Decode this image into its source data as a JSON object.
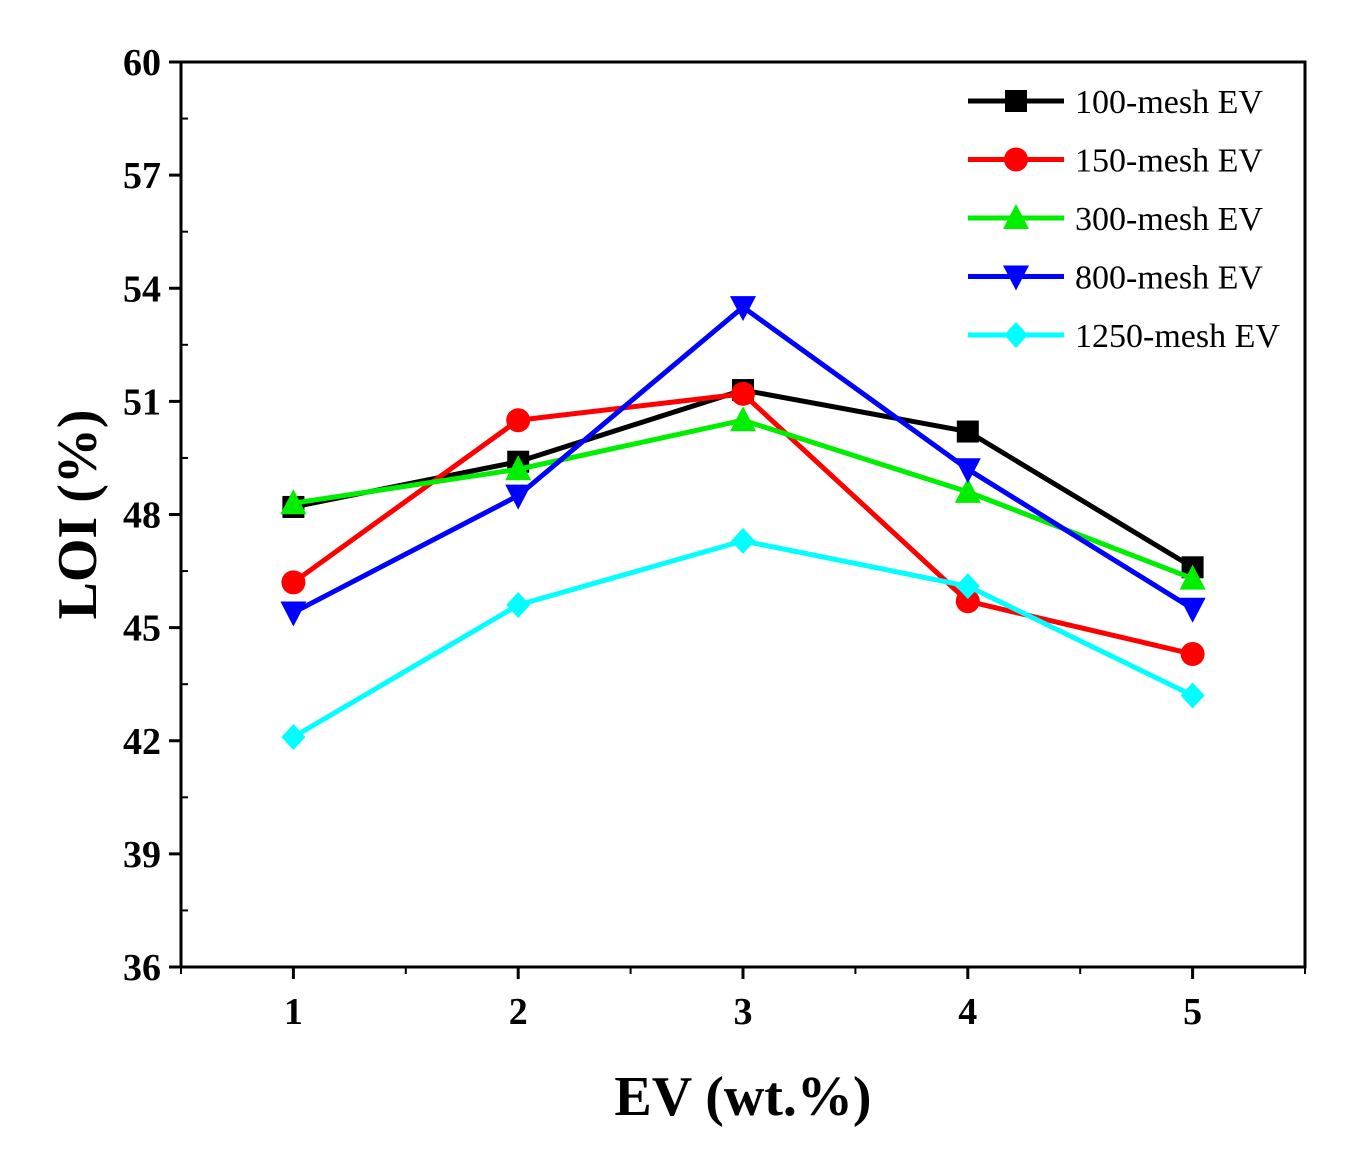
{
  "chart_data": {
    "type": "line",
    "xlabel": "EV (wt.%)",
    "ylabel": "LOI (%)",
    "x": [
      1,
      2,
      3,
      4,
      5
    ],
    "xlim": [
      0.5,
      5.5
    ],
    "ylim": [
      36,
      60
    ],
    "xticks": [
      "1",
      "2",
      "3",
      "4",
      "5"
    ],
    "yticks": [
      "36",
      "39",
      "42",
      "45",
      "48",
      "51",
      "54",
      "57",
      "60"
    ],
    "grid": false,
    "legend_position": "top-right",
    "series": [
      {
        "name": "100-mesh EV",
        "color": "#000000",
        "marker": "square",
        "values": [
          48.2,
          49.4,
          51.3,
          50.2,
          46.6
        ]
      },
      {
        "name": "150-mesh EV",
        "color": "#ff0000",
        "marker": "circle",
        "values": [
          46.2,
          50.5,
          51.2,
          45.7,
          44.3
        ]
      },
      {
        "name": "300-mesh EV",
        "color": "#00ee00",
        "marker": "triangle-up",
        "values": [
          48.3,
          49.2,
          50.5,
          48.6,
          46.3
        ]
      },
      {
        "name": "800-mesh EV",
        "color": "#0000ff",
        "marker": "triangle-down",
        "values": [
          45.4,
          48.5,
          53.5,
          49.2,
          45.5
        ]
      },
      {
        "name": "1250-mesh EV",
        "color": "#00ffff",
        "marker": "diamond",
        "values": [
          42.1,
          45.6,
          47.3,
          46.1,
          43.2
        ]
      }
    ]
  }
}
